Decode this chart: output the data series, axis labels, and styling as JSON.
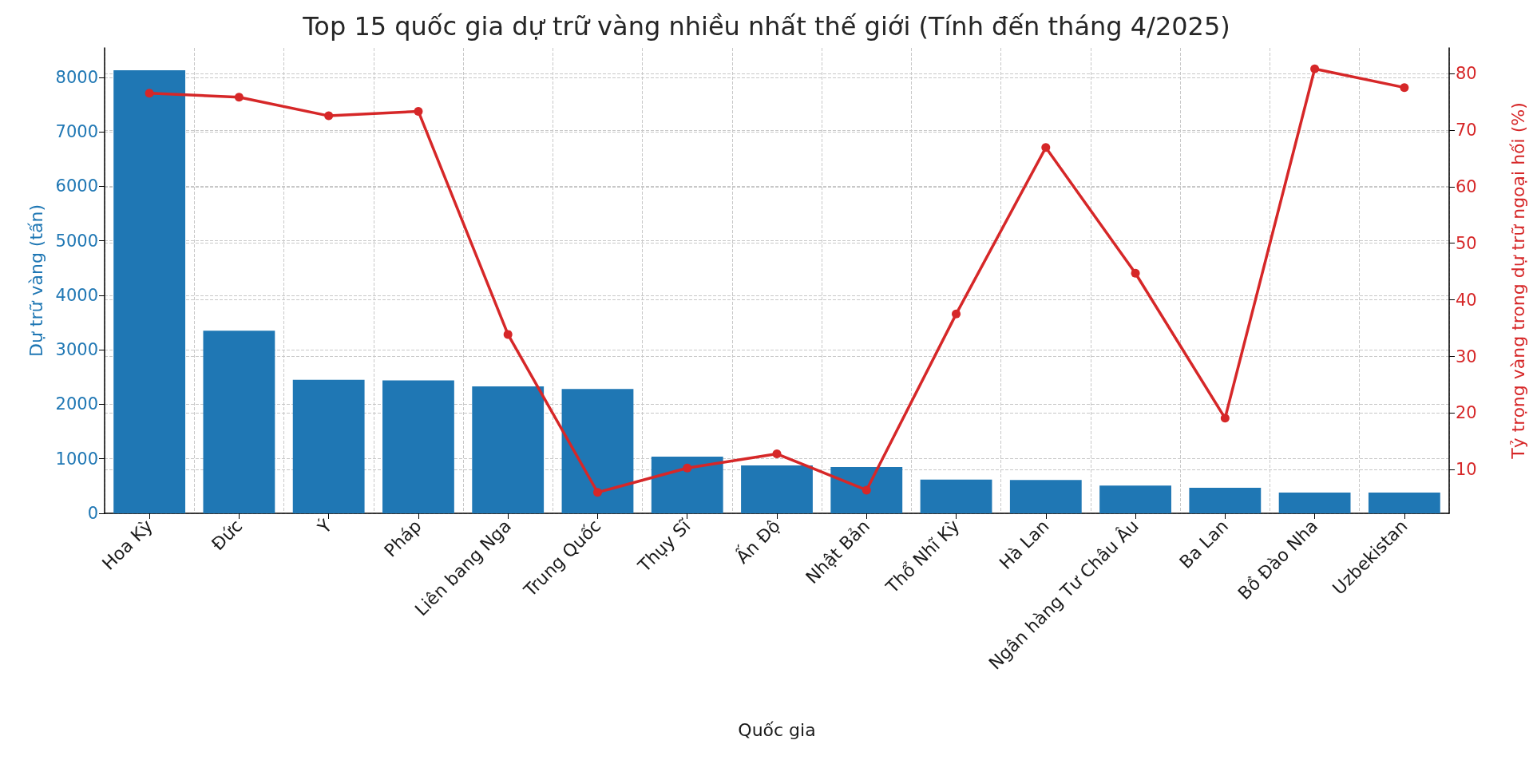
{
  "chart_data": {
    "type": "bar",
    "title": "Top 15 quốc gia dự trữ vàng nhiều nhất thế giới (Tính đến tháng 4/2025)",
    "xlabel": "Quốc gia",
    "ylabel": "Dự trữ vàng (tấn)",
    "y2label": "Tỷ trọng vàng trong dự trữ ngoại hối (%)",
    "categories": [
      "Hoa Kỳ",
      "Đức",
      "Ý",
      "Pháp",
      "Liên bang Nga",
      "Trung Quốc",
      "Thụy Sĩ",
      "Ấn Độ",
      "Nhật Bản",
      "Thổ Nhĩ Kỳ",
      "Hà Lan",
      "Ngân hàng Tư Châu Âu",
      "Ba Lan",
      "Bồ Đào Nha",
      "Uzbekistan"
    ],
    "series": [
      {
        "color": "#1f77b4",
        "values": [
          8130,
          3350,
          2450,
          2440,
          2330,
          2280,
          1040,
          880,
          850,
          620,
          610,
          510,
          470,
          380,
          380
        ]
      },
      {
        "type": "line",
        "axis": "y2",
        "color": "#d62728",
        "marker": "circle",
        "values": [
          76.5,
          75.8,
          72.5,
          73.3,
          33.9,
          6.0,
          10.3,
          12.8,
          6.4,
          37.5,
          66.9,
          44.7,
          19.1,
          80.8,
          77.5
        ]
      }
    ],
    "ylim": [
      0,
      8540
    ],
    "yticks": [
      0,
      1000,
      2000,
      3000,
      4000,
      5000,
      6000,
      7000,
      8000
    ],
    "y2lim": [
      2.3,
      84.5
    ],
    "y2ticks": [
      10,
      20,
      30,
      40,
      50,
      60,
      70,
      80
    ],
    "grid": true
  }
}
